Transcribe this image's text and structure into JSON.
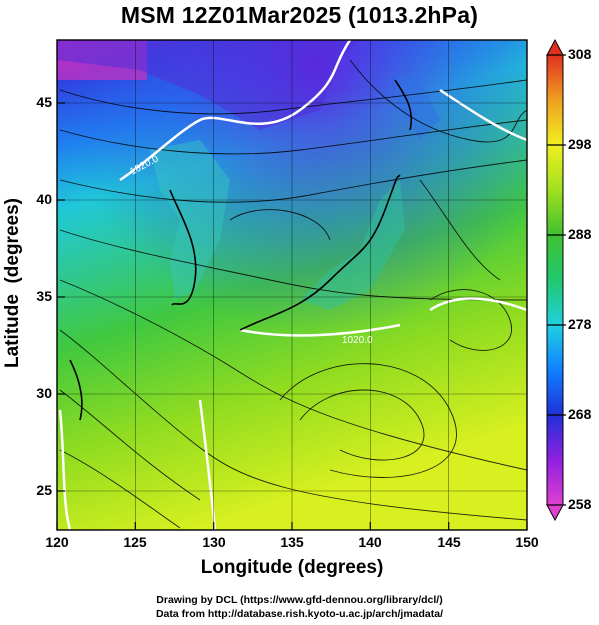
{
  "title": "MSM 12Z01Mar2025 (1013.2hPa)",
  "xaxis": {
    "label": "Longitude (degrees)",
    "ticks": [
      "120",
      "125",
      "130",
      "135",
      "140",
      "145",
      "150"
    ],
    "range": [
      120,
      150
    ]
  },
  "yaxis": {
    "label": "Latitude  (degrees)",
    "ticks": [
      "25",
      "30",
      "35",
      "40",
      "45"
    ],
    "range": [
      22.5,
      47.8
    ]
  },
  "colorbar": {
    "ticks": [
      "258",
      "268",
      "278",
      "288",
      "298",
      "308"
    ],
    "range": [
      258,
      308
    ],
    "colors": [
      "#e040d0",
      "#a020e0",
      "#3030d8",
      "#2090ff",
      "#20d0e0",
      "#20d070",
      "#30c030",
      "#a0e020",
      "#f0f020",
      "#f0a020",
      "#e04020"
    ]
  },
  "contour_labels": [
    "1020.0",
    "1020.0"
  ],
  "credits": {
    "line1": "Drawing by DCL (https://www.gfd-dennou.org/library/dcl/)",
    "line2": "Data from http://database.rish.kyoto-u.ac.jp/arch/jmadata/"
  }
}
